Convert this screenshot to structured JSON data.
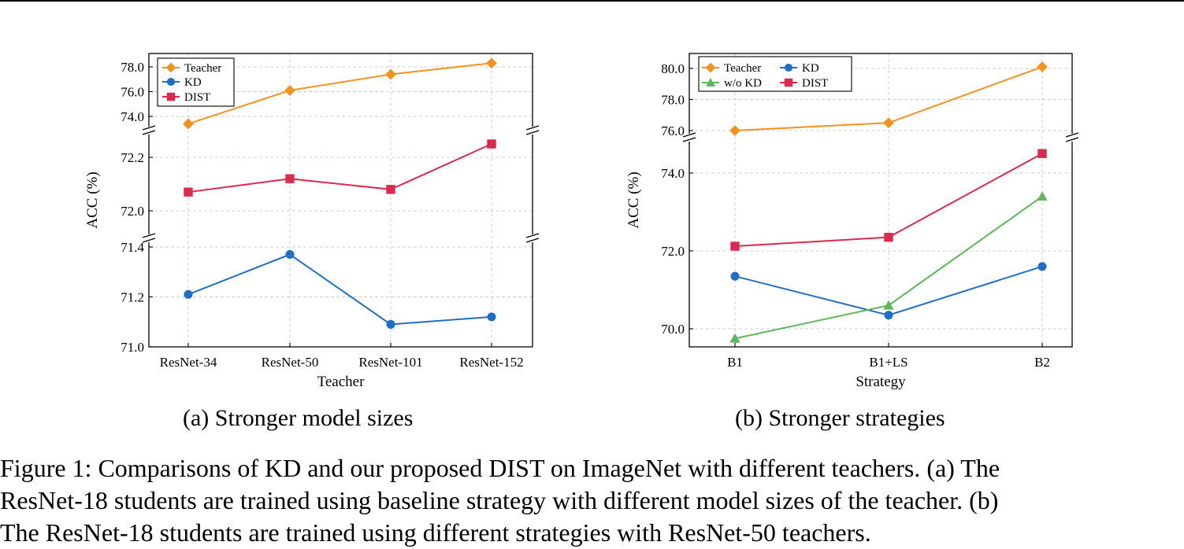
{
  "chart_data": [
    {
      "type": "line",
      "xlabel": "Teacher",
      "ylabel": "ACC (%)",
      "categories": [
        "ResNet-34",
        "ResNet-50",
        "ResNet-101",
        "ResNet-152"
      ],
      "series": [
        {
          "name": "Teacher",
          "color": "#F5921E",
          "marker": "diamond",
          "values": [
            73.4,
            76.1,
            77.4,
            78.3
          ]
        },
        {
          "name": "KD",
          "color": "#1F6FC6",
          "marker": "circle",
          "values": [
            71.21,
            71.37,
            71.09,
            71.12
          ]
        },
        {
          "name": "DIST",
          "color": "#DC2A4E",
          "marker": "square",
          "values": [
            72.07,
            72.12,
            72.08,
            72.25
          ]
        }
      ],
      "broken_axis": [
        {
          "range": [
            74.0,
            78.0
          ],
          "ticks": [
            74.0,
            76.0,
            78.0
          ]
        },
        {
          "range": [
            72.0,
            72.2
          ],
          "ticks": [
            72.0,
            72.2
          ]
        },
        {
          "range": [
            71.0,
            71.4
          ],
          "ticks": [
            71.0,
            71.2,
            71.4
          ]
        }
      ],
      "y_tick_labels": {
        "74": "74.0",
        "76": "76.0",
        "78": "78.0",
        "72": "72.0",
        "72.2": "72.2",
        "71": "71.0",
        "71.2": "71.2",
        "71.4": "71.4"
      },
      "legend": {
        "placement": "top-left",
        "entries": [
          "Teacher",
          "KD",
          "DIST"
        ]
      },
      "grid": true
    },
    {
      "type": "line",
      "xlabel": "Strategy",
      "ylabel": "ACC (%)",
      "categories": [
        "B1",
        "B1+LS",
        "B2"
      ],
      "series": [
        {
          "name": "Teacher",
          "color": "#F5921E",
          "marker": "diamond",
          "values": [
            76.0,
            76.5,
            80.1
          ]
        },
        {
          "name": "KD",
          "color": "#1F6FC6",
          "marker": "circle",
          "values": [
            71.35,
            70.35,
            71.6
          ]
        },
        {
          "name": "w/o KD",
          "color": "#5CB85C",
          "marker": "triangle",
          "values": [
            69.75,
            70.6,
            73.4
          ]
        },
        {
          "name": "DIST",
          "color": "#DC2A4E",
          "marker": "square",
          "values": [
            72.12,
            72.35,
            74.5
          ]
        }
      ],
      "broken_axis": [
        {
          "range": [
            76.0,
            80.0
          ],
          "ticks": [
            76.0,
            78.0,
            80.0
          ]
        },
        {
          "range": [
            70.0,
            74.0
          ],
          "ticks": [
            70.0,
            72.0,
            74.0
          ]
        }
      ],
      "y_tick_labels": {
        "76": "76.0",
        "78": "78.0",
        "80": "80.0",
        "70": "70.0",
        "72": "72.0",
        "74": "74.0"
      },
      "legend": {
        "placement": "top-left",
        "entries": [
          "Teacher",
          "KD",
          "w/o KD",
          "DIST"
        ]
      },
      "grid": true
    }
  ],
  "captions": {
    "a": "(a)  Stronger model sizes",
    "b": "(b)  Stronger strategies"
  },
  "figure_caption": [
    "Figure 1: Comparisons of KD and our proposed DIST on ImageNet with different teachers. (a) The",
    "ResNet-18 students are trained using baseline strategy with different model sizes of the teacher. (b)",
    "The ResNet-18 students are trained using different strategies with ResNet-50 teachers."
  ]
}
